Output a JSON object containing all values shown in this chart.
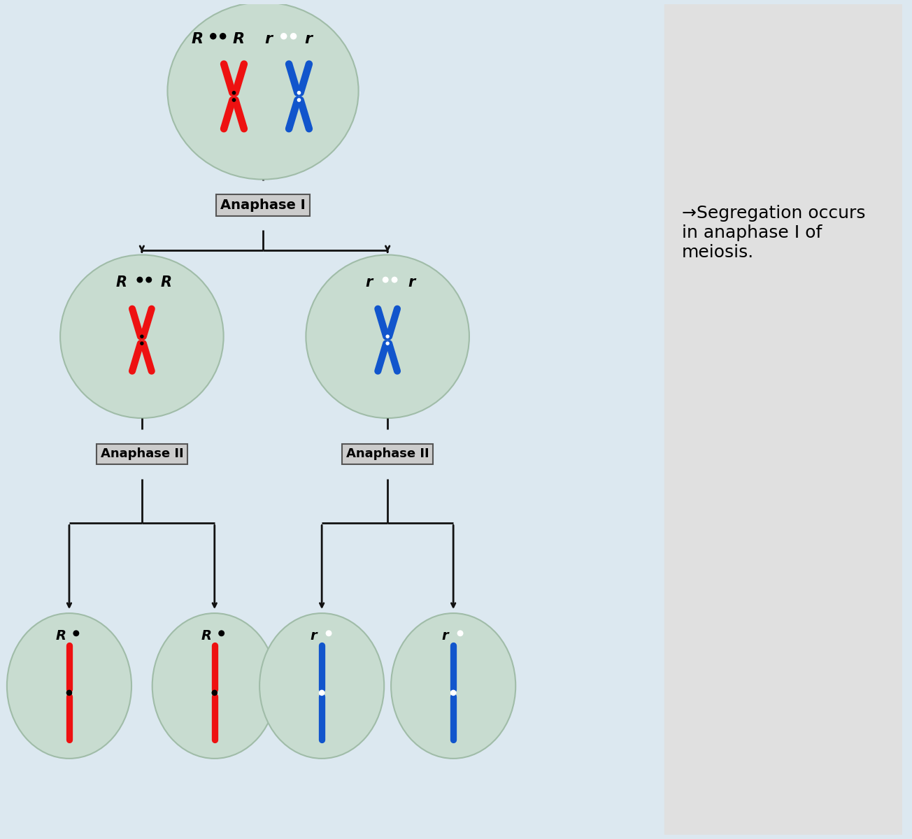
{
  "bg_color": "#dce8f0",
  "right_panel_color": "#e0e0e0",
  "circle_color": "#c8dcd0",
  "circle_edge": "#a0bca8",
  "red_chrom": "#ee1111",
  "blue_chrom": "#1155cc",
  "black": "#111111",
  "box_face": "#cccccc",
  "box_edge": "#555555",
  "anaphase1_label": "Anaphase I",
  "anaphase2_label": "Anaphase II",
  "annot_text": "→Segregation occurs\nin anaphase I of\nmeiosis.",
  "arrow_color": "#111111",
  "line_color": "#111111"
}
